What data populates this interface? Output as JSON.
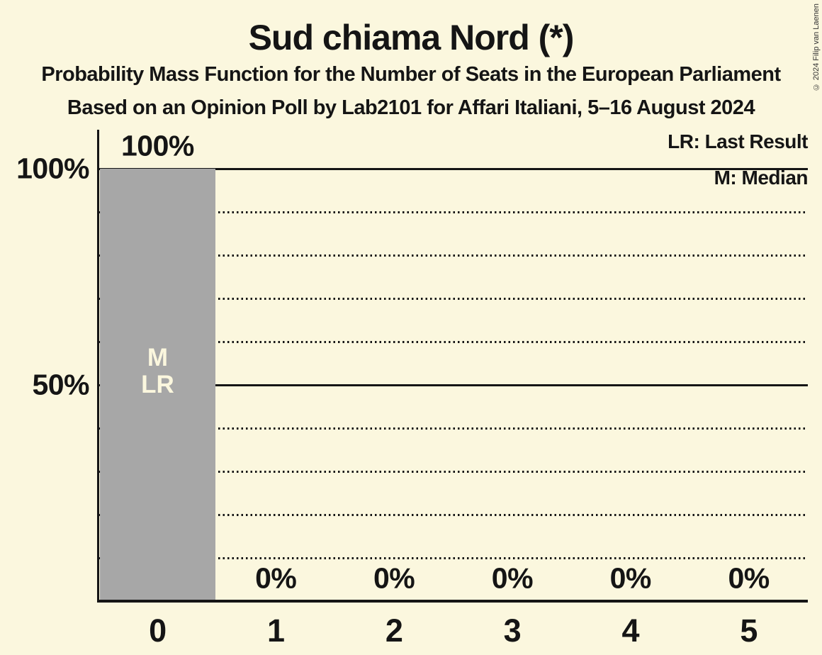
{
  "title": "Sud chiama Nord (*)",
  "subtitle1": "Probability Mass Function for the Number of Seats in the European Parliament",
  "subtitle2": "Based on an Opinion Poll by Lab2101 for Affari Italiani, 5–16 August 2024",
  "copyright": "© 2024 Filip van Laenen",
  "legend": {
    "last_result": "LR: Last Result",
    "median": "M: Median"
  },
  "colors": {
    "background": "#FBF7DE",
    "bar": "#A7A7A7",
    "text": "#151515",
    "bar_annotation_text": "#FBF7DE"
  },
  "chart_data": {
    "type": "bar",
    "title": "Sud chiama Nord (*)",
    "categories": [
      "0",
      "1",
      "2",
      "3",
      "4",
      "5"
    ],
    "values": [
      100,
      0,
      0,
      0,
      0,
      0
    ],
    "bar_value_labels": [
      "100%",
      "0%",
      "0%",
      "0%",
      "0%",
      "0%"
    ],
    "y_axis_ticks": [
      {
        "value": 100,
        "label": "100%"
      },
      {
        "value": 50,
        "label": "50%"
      }
    ],
    "gridlines": {
      "solid": [
        100,
        50
      ],
      "dotted": [
        90,
        80,
        70,
        60,
        40,
        30,
        20,
        10
      ]
    },
    "ylim": [
      0,
      100
    ],
    "annotations": [
      {
        "category": "0",
        "lines": [
          "M",
          "LR"
        ]
      }
    ],
    "legend_position": "top-right",
    "grid": true
  }
}
